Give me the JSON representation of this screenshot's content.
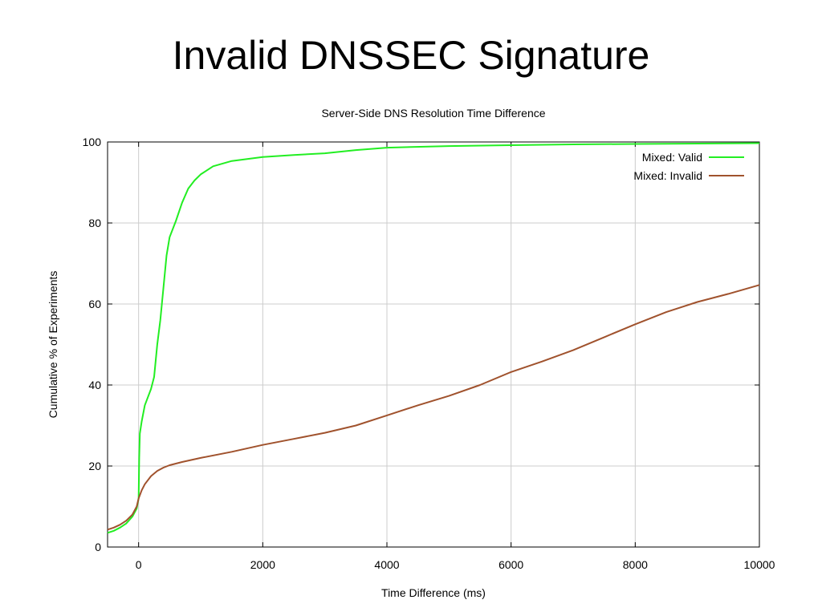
{
  "slide": {
    "title": "Invalid DNSSEC Signature"
  },
  "chart_data": {
    "type": "line",
    "title": "Server-Side DNS Resolution Time Difference",
    "xlabel": "Time Difference (ms)",
    "ylabel": "Cumulative % of Experiments",
    "xlim": [
      -500,
      10000
    ],
    "ylim": [
      0,
      100
    ],
    "xticks": [
      0,
      2000,
      4000,
      6000,
      8000,
      10000
    ],
    "yticks": [
      0,
      20,
      40,
      60,
      80,
      100
    ],
    "grid": true,
    "legend_position": "top-right",
    "series": [
      {
        "name": "Mixed: Valid",
        "color": "#22ee22",
        "points": [
          [
            -500,
            3.5
          ],
          [
            -400,
            4
          ],
          [
            -300,
            4.8
          ],
          [
            -200,
            5.8
          ],
          [
            -100,
            7.5
          ],
          [
            -30,
            9.5
          ],
          [
            0,
            12
          ],
          [
            10,
            22
          ],
          [
            20,
            28
          ],
          [
            50,
            31
          ],
          [
            100,
            35
          ],
          [
            200,
            39
          ],
          [
            250,
            42
          ],
          [
            300,
            50
          ],
          [
            350,
            56
          ],
          [
            400,
            64
          ],
          [
            450,
            72
          ],
          [
            500,
            76.5
          ],
          [
            600,
            80.5
          ],
          [
            700,
            85
          ],
          [
            800,
            88.5
          ],
          [
            900,
            90.5
          ],
          [
            1000,
            92
          ],
          [
            1200,
            94
          ],
          [
            1500,
            95.3
          ],
          [
            2000,
            96.3
          ],
          [
            2500,
            96.8
          ],
          [
            3000,
            97.2
          ],
          [
            3500,
            98
          ],
          [
            4000,
            98.6
          ],
          [
            5000,
            99
          ],
          [
            6000,
            99.2
          ],
          [
            7000,
            99.4
          ],
          [
            8000,
            99.5
          ],
          [
            9000,
            99.6
          ],
          [
            10000,
            99.7
          ]
        ]
      },
      {
        "name": "Mixed: Invalid",
        "color": "#a0522d",
        "points": [
          [
            -500,
            4.3
          ],
          [
            -400,
            4.8
          ],
          [
            -300,
            5.5
          ],
          [
            -200,
            6.5
          ],
          [
            -100,
            8
          ],
          [
            -30,
            10
          ],
          [
            0,
            12
          ],
          [
            50,
            14
          ],
          [
            100,
            15.5
          ],
          [
            200,
            17.5
          ],
          [
            300,
            18.8
          ],
          [
            400,
            19.6
          ],
          [
            500,
            20.2
          ],
          [
            700,
            21
          ],
          [
            1000,
            22
          ],
          [
            1500,
            23.5
          ],
          [
            2000,
            25.2
          ],
          [
            2500,
            26.7
          ],
          [
            3000,
            28.2
          ],
          [
            3500,
            30
          ],
          [
            4000,
            32.5
          ],
          [
            4500,
            35
          ],
          [
            5000,
            37.3
          ],
          [
            5500,
            40
          ],
          [
            6000,
            43.2
          ],
          [
            6500,
            45.8
          ],
          [
            7000,
            48.6
          ],
          [
            7500,
            51.8
          ],
          [
            8000,
            55
          ],
          [
            8500,
            58
          ],
          [
            9000,
            60.5
          ],
          [
            9500,
            62.5
          ],
          [
            10000,
            64.7
          ]
        ]
      }
    ]
  }
}
